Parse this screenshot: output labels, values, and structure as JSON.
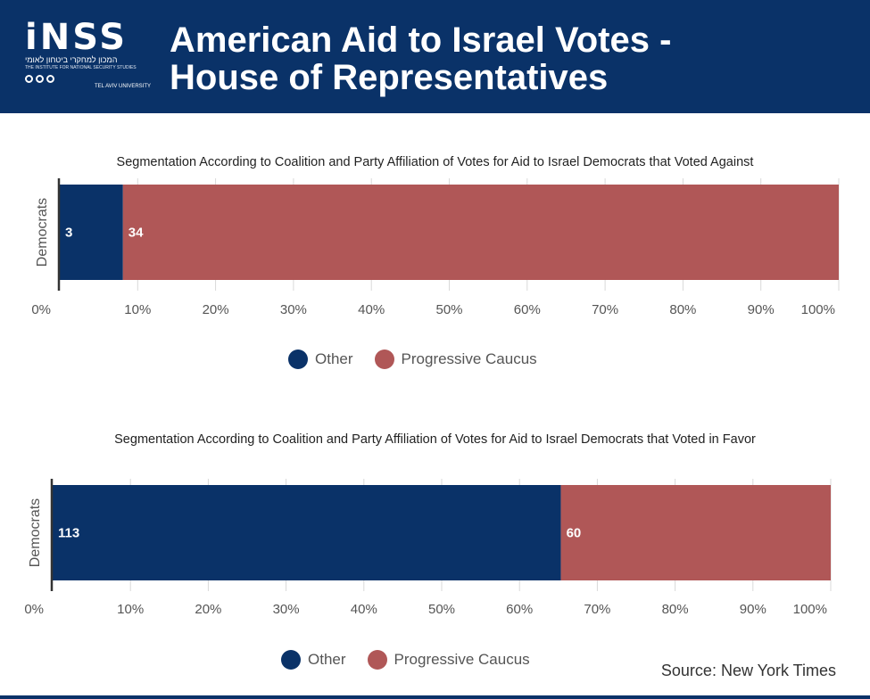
{
  "header": {
    "logo_text": "iNSS",
    "logo_hebrew": "המכון למחקרי ביטחון לאומי",
    "logo_english": "THE INSTITUTE FOR NATIONAL SECURITY STUDIES",
    "logo_university": "TEL AVIV UNIVERSITY",
    "title_line1": "American Aid to Israel Votes -",
    "title_line2": "House of Representatives"
  },
  "colors": {
    "header_bg": "#0a3268",
    "other": "#0a3268",
    "progressive": "#b05757"
  },
  "chart_data": [
    {
      "type": "bar",
      "orientation": "horizontal",
      "stacked": "percent",
      "title": "Segmentation According to Coalition and Party Affiliation of Votes for Aid to Israel Democrats that Voted Against",
      "categories": [
        "Democrats"
      ],
      "series": [
        {
          "name": "Other",
          "values": [
            3
          ],
          "color": "#0a3268"
        },
        {
          "name": "Progressive Caucus",
          "values": [
            34
          ],
          "color": "#b05757"
        }
      ],
      "x_ticks": [
        "0%",
        "10%",
        "20%",
        "30%",
        "40%",
        "50%",
        "60%",
        "70%",
        "80%",
        "90%",
        "100%"
      ],
      "xlim": [
        0,
        100
      ],
      "grid": true,
      "legend": [
        "Other",
        "Progressive Caucus"
      ]
    },
    {
      "type": "bar",
      "orientation": "horizontal",
      "stacked": "percent",
      "title": "Segmentation According to Coalition and Party Affiliation of Votes for Aid to Israel Democrats that Voted in Favor",
      "categories": [
        "Democrats"
      ],
      "series": [
        {
          "name": "Other",
          "values": [
            113
          ],
          "color": "#0a3268"
        },
        {
          "name": "Progressive Caucus",
          "values": [
            60
          ],
          "color": "#b05757"
        }
      ],
      "x_ticks": [
        "0%",
        "10%",
        "20%",
        "30%",
        "40%",
        "50%",
        "60%",
        "70%",
        "80%",
        "90%",
        "100%"
      ],
      "xlim": [
        0,
        100
      ],
      "grid": true,
      "legend": [
        "Other",
        "Progressive Caucus"
      ]
    }
  ],
  "source": "Source: New York Times"
}
